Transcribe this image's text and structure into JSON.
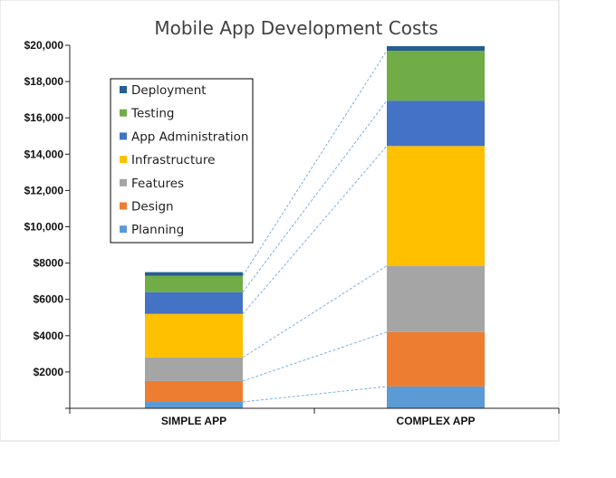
{
  "chart_data": {
    "type": "bar",
    "stacked": true,
    "title": "Mobile App Development Costs",
    "xlabel": "",
    "ylabel": "",
    "ylim": [
      0,
      20000
    ],
    "yticks": [
      {
        "value": 2000,
        "label": "$2000"
      },
      {
        "value": 4000,
        "label": "$4000"
      },
      {
        "value": 6000,
        "label": "$6000"
      },
      {
        "value": 8000,
        "label": "$8000"
      },
      {
        "value": 10000,
        "label": "$10,000"
      },
      {
        "value": 12000,
        "label": "$12,000"
      },
      {
        "value": 14000,
        "label": "$14,000"
      },
      {
        "value": 16000,
        "label": "$16,000"
      },
      {
        "value": 18000,
        "label": "$18,000"
      },
      {
        "value": 20000,
        "label": "$20,000"
      }
    ],
    "categories": [
      "SIMPLE APP",
      "COMPLEX APP"
    ],
    "series": [
      {
        "name": "Planning",
        "color": "#5b9bd5",
        "values": [
          350,
          1200
        ]
      },
      {
        "name": "Design",
        "color": "#ed7d31",
        "values": [
          1150,
          3000
        ]
      },
      {
        "name": "Features",
        "color": "#a5a5a5",
        "values": [
          1300,
          3650
        ]
      },
      {
        "name": "Infrastructure",
        "color": "#ffc000",
        "values": [
          2400,
          6600
        ]
      },
      {
        "name": "App Administration",
        "color": "#4472c4",
        "values": [
          1200,
          2500
        ]
      },
      {
        "name": "Testing",
        "color": "#70ad47",
        "values": [
          900,
          2750
        ]
      },
      {
        "name": "Deployment",
        "color": "#255e91",
        "values": [
          200,
          250
        ]
      }
    ],
    "grid": false,
    "legend": "top-left",
    "connector_lines": true
  }
}
